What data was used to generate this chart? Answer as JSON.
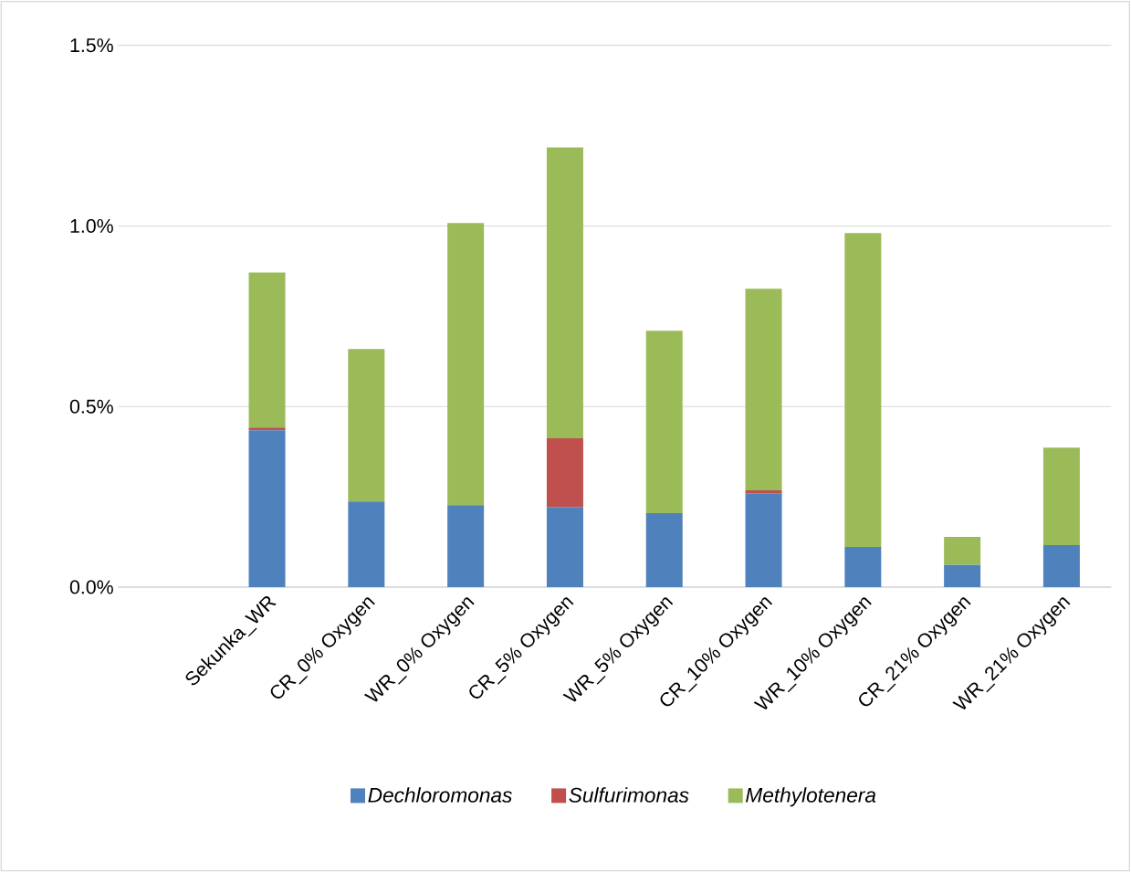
{
  "chart_data": {
    "type": "bar",
    "stacked": true,
    "categories": [
      null,
      "Sekunka_WR",
      "CR_0% Oxygen",
      "WR_0% Oxygen",
      "CR_5% Oxygen",
      "WR_5% Oxygen",
      "CR_10% Oxygen",
      "WR_10% Oxygen",
      "CR_21% Oxygen",
      "WR_21% Oxygen"
    ],
    "series": [
      {
        "name": "*Dechloromonas*",
        "color": "#4f81bd",
        "values": [
          null,
          0.434,
          0.237,
          0.227,
          0.222,
          0.205,
          0.26,
          0.111,
          0.061,
          0.116
        ]
      },
      {
        "name": "*Sulfurimonas*",
        "color": "#c0504d",
        "values": [
          null,
          0.008,
          0,
          0,
          0.19,
          0,
          0.008,
          0,
          0,
          0
        ]
      },
      {
        "name": "*Methylotenera*",
        "color": "#9bbb59",
        "values": [
          null,
          0.429,
          0.422,
          0.781,
          0.805,
          0.505,
          0.558,
          0.869,
          0.078,
          0.27
        ]
      }
    ],
    "ylim": [
      0,
      1.5
    ],
    "yticks": [
      {
        "value": 0,
        "label": "0.0%"
      },
      {
        "value": 0.5,
        "label": "0.5%"
      },
      {
        "value": 1.0,
        "label": "1.0%"
      },
      {
        "value": 1.5,
        "label": "1.5%"
      }
    ],
    "grid": "y",
    "legend": "bottom"
  }
}
